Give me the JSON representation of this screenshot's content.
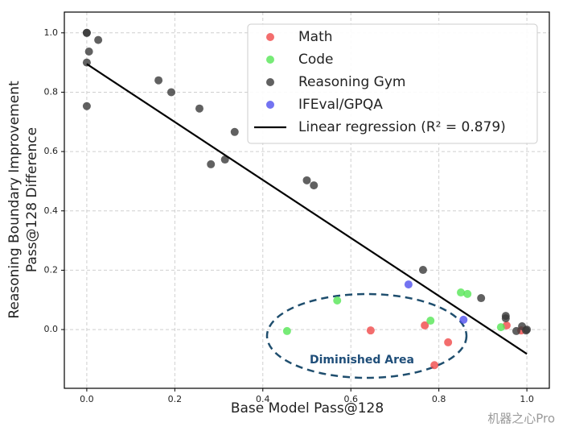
{
  "chart_data": {
    "type": "scatter",
    "xlabel": "Base Model Pass@128",
    "ylabel": [
      "Reasoning Boundary Improvement",
      "Pass@128 Difference"
    ],
    "annotation": "Diminished Area",
    "watermark": "机器之心Pro",
    "xlim": [
      -0.051,
      1.051
    ],
    "ylim": [
      -0.198,
      1.07
    ],
    "xticks": [
      {
        "value": 0,
        "label": "0.0"
      },
      0.2,
      0.4,
      0.6,
      0.8,
      {
        "value": 1,
        "label": "1.0"
      }
    ],
    "yticks": [
      {
        "value": 0,
        "label": "0.0"
      },
      0.2,
      0.4,
      0.6,
      0.8,
      {
        "value": 1,
        "label": "1.0"
      }
    ],
    "grid": true,
    "legend": "upper right",
    "series": [
      {
        "name": "Math",
        "color": "#f04848",
        "x": [
          0.645,
          0.768,
          0.821,
          0.79,
          0.954,
          0.987
        ],
        "y": [
          -0.003,
          0.014,
          -0.043,
          -0.12,
          0.014,
          -0.003
        ]
      },
      {
        "name": "Code",
        "color": "#55e655",
        "x": [
          0.455,
          0.569,
          0.781,
          0.85,
          0.865,
          0.941
        ],
        "y": [
          -0.005,
          0.098,
          0.03,
          0.125,
          0.12,
          0.008
        ]
      },
      {
        "name": "Reasoning Gym",
        "color": "#3a3a3a",
        "x": [
          0,
          0,
          0.026,
          0.005,
          0,
          0,
          0.163,
          0.192,
          0.256,
          0.336,
          0.314,
          0.282,
          0.5,
          0.516,
          0.764,
          0.896,
          0.952,
          0.952,
          0.976,
          0.989,
          1.0,
          0.998
        ],
        "y": [
          1.0,
          1.0,
          0.976,
          0.937,
          0.9,
          0.753,
          0.84,
          0.8,
          0.745,
          0.666,
          0.573,
          0.557,
          0.503,
          0.486,
          0.201,
          0.106,
          0.046,
          0.038,
          -0.005,
          0.011,
          0.0,
          -0.003
        ]
      },
      {
        "name": "IFEval/GPQA",
        "color": "#5050ee",
        "x": [
          0.731,
          0.856
        ],
        "y": [
          0.152,
          0.033
        ]
      }
    ],
    "regression": {
      "name": "Linear regression (R² = 0.879)",
      "color": "#000000",
      "x": [
        0,
        1
      ],
      "y": [
        0.895,
        -0.082
      ]
    }
  }
}
